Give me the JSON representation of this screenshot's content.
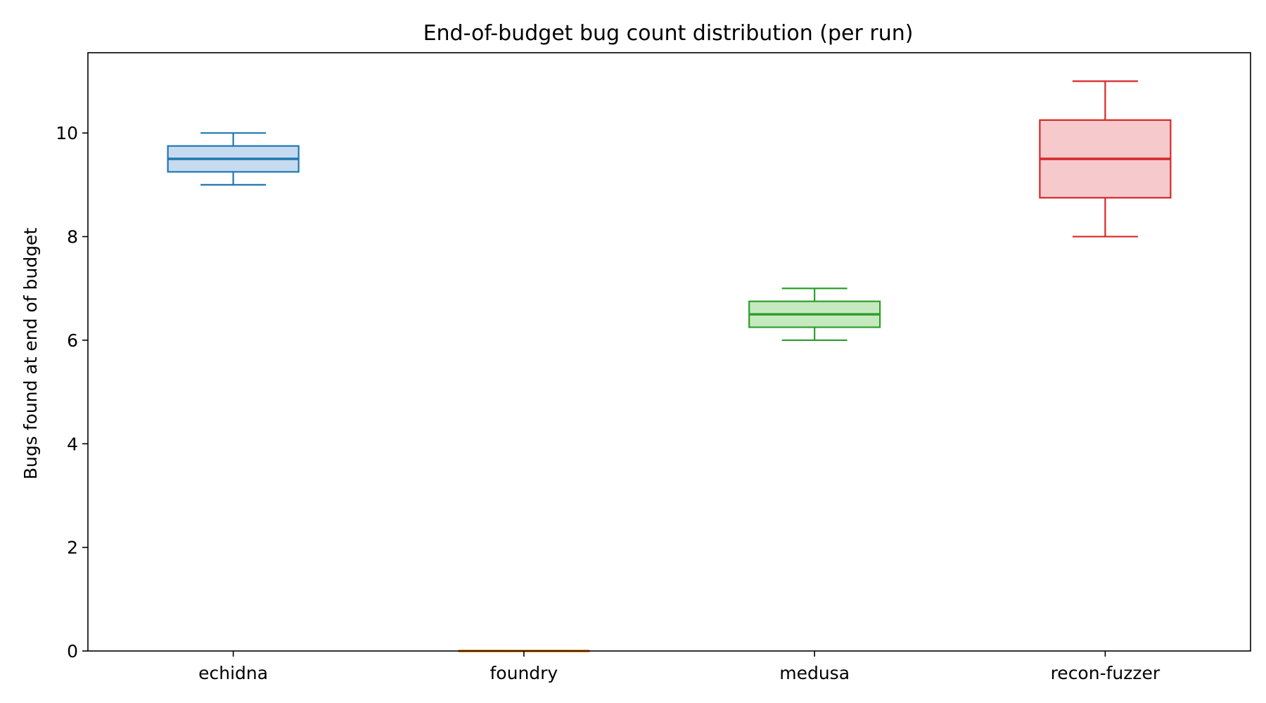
{
  "chart_data": {
    "type": "box",
    "title": "End-of-budget bug count distribution (per run)",
    "xlabel": "",
    "ylabel": "Bugs found at end of budget",
    "ylim": [
      0,
      11.55
    ],
    "yticks": [
      0,
      2,
      4,
      6,
      8,
      10
    ],
    "grid": false,
    "categories": [
      "echidna",
      "foundry",
      "medusa",
      "recon-fuzzer"
    ],
    "boxes": [
      {
        "label": "echidna",
        "whisker_low": 9,
        "q1": 9.25,
        "median": 9.5,
        "q3": 9.75,
        "whisker_high": 10,
        "color": "#1f77b4",
        "fill": "#c6dbef"
      },
      {
        "label": "foundry",
        "whisker_low": 0,
        "q1": 0,
        "median": 0,
        "q3": 0,
        "whisker_high": 0,
        "color": "#ff7f0e",
        "fill": "#fdd0a2"
      },
      {
        "label": "medusa",
        "whisker_low": 6,
        "q1": 6.25,
        "median": 6.5,
        "q3": 6.75,
        "whisker_high": 7,
        "color": "#2ca02c",
        "fill": "#c7e9c0"
      },
      {
        "label": "recon-fuzzer",
        "whisker_low": 8,
        "q1": 8.75,
        "median": 9.5,
        "q3": 10.25,
        "whisker_high": 11,
        "color": "#d62728",
        "fill": "#f6c9cc"
      }
    ]
  }
}
